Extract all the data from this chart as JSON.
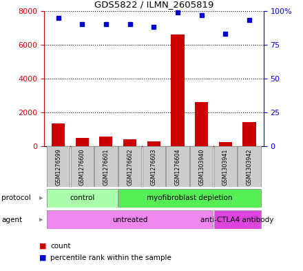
{
  "title": "GDS5822 / ILMN_2605819",
  "samples": [
    "GSM1276599",
    "GSM1276600",
    "GSM1276601",
    "GSM1276602",
    "GSM1276603",
    "GSM1276604",
    "GSM1303940",
    "GSM1303941",
    "GSM1303942"
  ],
  "counts": [
    1350,
    480,
    580,
    420,
    310,
    6600,
    2600,
    270,
    1450
  ],
  "percentiles": [
    95,
    90,
    90,
    90,
    88,
    99,
    97,
    83,
    93
  ],
  "ylim_left": [
    0,
    8000
  ],
  "ylim_right": [
    0,
    100
  ],
  "yticks_left": [
    0,
    2000,
    4000,
    6000,
    8000
  ],
  "yticks_right": [
    0,
    25,
    50,
    75,
    100
  ],
  "bar_color": "#cc0000",
  "dot_color": "#0000cc",
  "protocol_data": [
    {
      "label": "control",
      "start": 0,
      "end": 2,
      "color": "#aaffaa"
    },
    {
      "label": "myofibroblast depletion",
      "start": 3,
      "end": 8,
      "color": "#55ee55"
    }
  ],
  "agent_data": [
    {
      "label": "untreated",
      "start": 0,
      "end": 6,
      "color": "#ee88ee"
    },
    {
      "label": "anti-CTLA4 antibody",
      "start": 7,
      "end": 8,
      "color": "#dd44dd"
    }
  ],
  "bg_color": "#cccccc",
  "legend_count_color": "#cc0000",
  "legend_dot_color": "#0000cc"
}
